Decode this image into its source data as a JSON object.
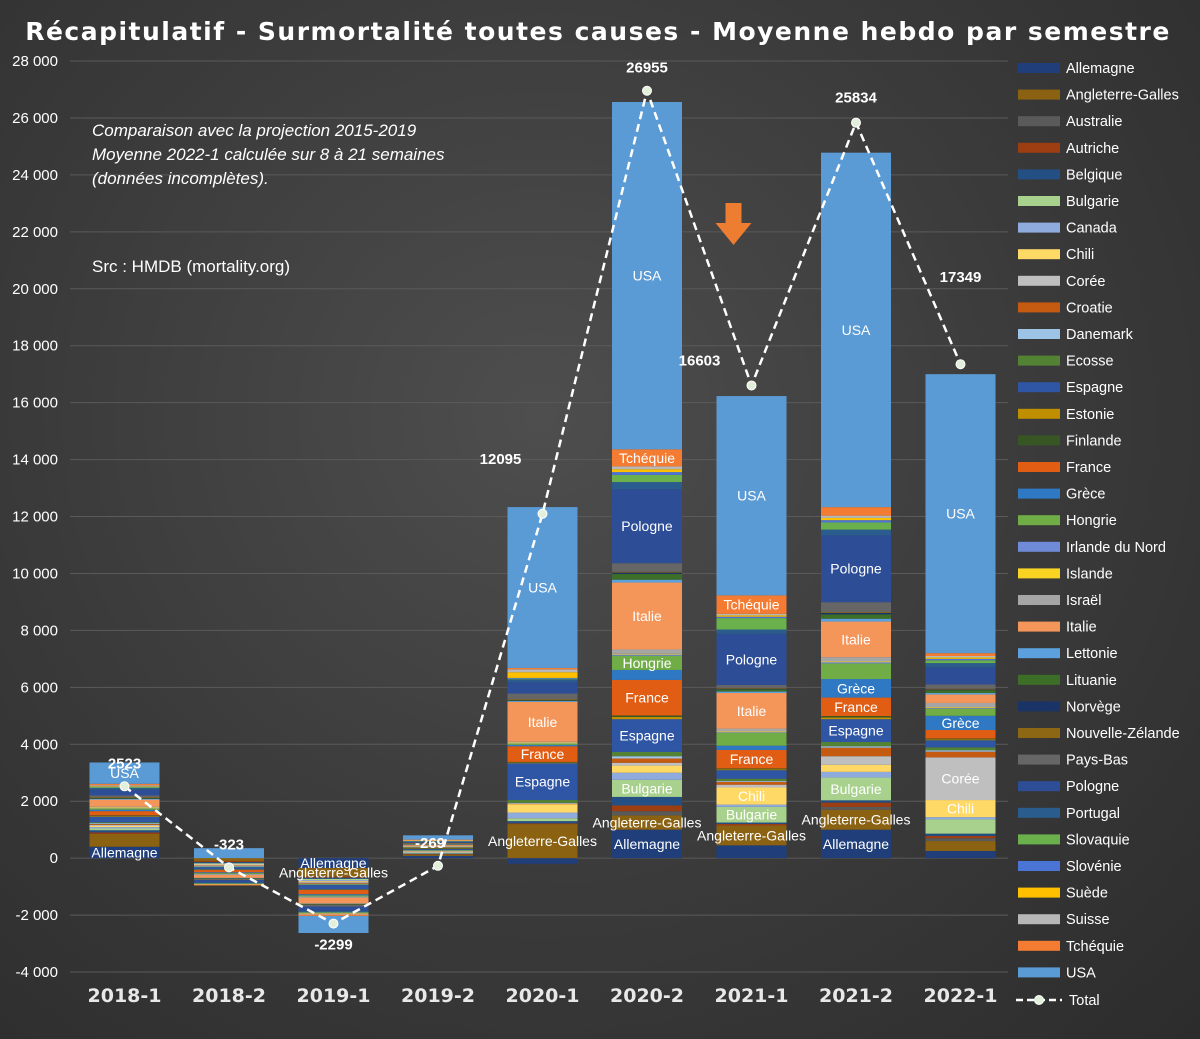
{
  "chart_data": {
    "type": "bar",
    "stacked": true,
    "title": "Récapitulatif - Surmortalité toutes causes - Moyenne hebdo par semestre",
    "annotations": [
      "Comparaison avec la projection 2015-2019",
      "Moyenne 2022-1 calculée sur 8 à 21 semaines",
      "(données incomplètes).",
      "Src : HMDB (mortality.org)"
    ],
    "categories": [
      "2018-1",
      "2018-2",
      "2019-1",
      "2019-2",
      "2020-1",
      "2020-2",
      "2021-1",
      "2021-2",
      "2022-1"
    ],
    "ylim": [
      -4000,
      28000
    ],
    "yticks": [
      -4000,
      -2000,
      0,
      2000,
      4000,
      6000,
      8000,
      10000,
      12000,
      14000,
      16000,
      18000,
      20000,
      22000,
      24000,
      26000,
      28000
    ],
    "ytick_labels": [
      "-4 000",
      "-2 000",
      "0",
      "2 000",
      "4 000",
      "6 000",
      "8 000",
      "10 000",
      "12 000",
      "14 000",
      "16 000",
      "18 000",
      "20 000",
      "22 000",
      "24 000",
      "26 000",
      "28 000"
    ],
    "legend_position": "right",
    "series": [
      {
        "name": "Allemagne",
        "color": "#1f3e7a",
        "values": [
          400,
          0,
          -350,
          80,
          -200,
          1000,
          450,
          1000,
          250
        ]
      },
      {
        "name": "Angleterre-Galles",
        "color": "#8a6212",
        "values": [
          450,
          -100,
          -300,
          50,
          1200,
          500,
          700,
          700,
          350
        ]
      },
      {
        "name": "Australie",
        "color": "#5a5a5a",
        "values": [
          0,
          0,
          0,
          0,
          0,
          150,
          0,
          100,
          100
        ]
      },
      {
        "name": "Autriche",
        "color": "#9c3d12",
        "values": [
          50,
          -40,
          -40,
          20,
          20,
          200,
          50,
          150,
          80
        ]
      },
      {
        "name": "Belgique",
        "color": "#234f84",
        "values": [
          80,
          -40,
          -40,
          20,
          80,
          300,
          50,
          80,
          80
        ]
      },
      {
        "name": "Bulgarie",
        "color": "#a9d18e",
        "values": [
          60,
          -20,
          -40,
          20,
          100,
          600,
          550,
          800,
          500
        ]
      },
      {
        "name": "Canada",
        "color": "#8faadc",
        "values": [
          50,
          -20,
          -40,
          20,
          200,
          250,
          80,
          200,
          80
        ]
      },
      {
        "name": "Chili",
        "color": "#ffd966",
        "values": [
          40,
          -20,
          -30,
          20,
          300,
          250,
          600,
          250,
          600
        ]
      },
      {
        "name": "Corée",
        "color": "#bfbfbf",
        "values": [
          40,
          -20,
          -30,
          20,
          0,
          100,
          100,
          300,
          1500
        ]
      },
      {
        "name": "Croatie",
        "color": "#c55a11",
        "values": [
          30,
          -20,
          -30,
          20,
          20,
          150,
          100,
          300,
          200
        ]
      },
      {
        "name": "Danemark",
        "color": "#9dc3e6",
        "values": [
          30,
          -20,
          -20,
          10,
          20,
          80,
          30,
          50,
          50
        ]
      },
      {
        "name": "Ecosse",
        "color": "#548235",
        "values": [
          30,
          -20,
          -30,
          10,
          100,
          150,
          80,
          150,
          100
        ]
      },
      {
        "name": "Espagne",
        "color": "#2e56a5",
        "values": [
          200,
          -80,
          -150,
          50,
          1300,
          1150,
          300,
          800,
          250
        ]
      },
      {
        "name": "Estonie",
        "color": "#bf8f00",
        "values": [
          20,
          -10,
          -10,
          10,
          20,
          80,
          30,
          60,
          30
        ]
      },
      {
        "name": "Finlande",
        "color": "#375623",
        "values": [
          20,
          -10,
          -10,
          10,
          20,
          50,
          30,
          50,
          30
        ]
      },
      {
        "name": "France",
        "color": "#e15d13",
        "values": [
          150,
          -80,
          -150,
          30,
          550,
          1250,
          650,
          650,
          300
        ]
      },
      {
        "name": "Grèce",
        "color": "#2f79c4",
        "values": [
          50,
          -30,
          -40,
          10,
          50,
          350,
          150,
          650,
          500
        ]
      },
      {
        "name": "Hongrie",
        "color": "#70ad47",
        "values": [
          50,
          -30,
          -40,
          10,
          50,
          500,
          450,
          550,
          250
        ]
      },
      {
        "name": "Irlande du Nord",
        "color": "#6f8ad6",
        "values": [
          20,
          -10,
          -10,
          10,
          20,
          50,
          30,
          50,
          30
        ]
      },
      {
        "name": "Islande",
        "color": "#f9d423",
        "values": [
          10,
          -5,
          -5,
          5,
          10,
          20,
          20,
          20,
          20
        ]
      },
      {
        "name": "Israël",
        "color": "#a5a5a5",
        "values": [
          30,
          -20,
          -30,
          10,
          30,
          150,
          100,
          150,
          150
        ]
      },
      {
        "name": "Italie",
        "color": "#f4955a",
        "values": [
          250,
          -100,
          -200,
          50,
          1400,
          2350,
          1250,
          1250,
          300
        ]
      },
      {
        "name": "Lettonie",
        "color": "#5ca1dd",
        "values": [
          20,
          -10,
          -10,
          10,
          30,
          100,
          50,
          100,
          50
        ]
      },
      {
        "name": "Lituanie",
        "color": "#3d6e27",
        "values": [
          30,
          -20,
          -20,
          10,
          30,
          200,
          80,
          150,
          100
        ]
      },
      {
        "name": "Norvège",
        "color": "#1a3468",
        "values": [
          20,
          -10,
          -10,
          10,
          20,
          50,
          30,
          50,
          30
        ]
      },
      {
        "name": "Nouvelle-Zélande",
        "color": "#8d6714",
        "values": [
          10,
          -5,
          -5,
          5,
          10,
          30,
          20,
          30,
          20
        ]
      },
      {
        "name": "Pays-Bas",
        "color": "#666666",
        "values": [
          60,
          -30,
          -60,
          20,
          200,
          300,
          100,
          350,
          150
        ]
      },
      {
        "name": "Pologne",
        "color": "#2d4e97",
        "values": [
          200,
          -80,
          -150,
          40,
          400,
          2600,
          1800,
          2350,
          600
        ]
      },
      {
        "name": "Portugal",
        "color": "#2a5c8e",
        "values": [
          60,
          -30,
          -40,
          20,
          100,
          250,
          150,
          200,
          150
        ]
      },
      {
        "name": "Slovaquie",
        "color": "#6ab04c",
        "values": [
          40,
          -20,
          -30,
          10,
          30,
          250,
          400,
          250,
          100
        ]
      },
      {
        "name": "Slovénie",
        "color": "#4a74d6",
        "values": [
          20,
          -10,
          -20,
          10,
          20,
          100,
          50,
          80,
          50
        ]
      },
      {
        "name": "Suède",
        "color": "#ffc000",
        "values": [
          20,
          -10,
          -20,
          10,
          200,
          100,
          50,
          80,
          50
        ]
      },
      {
        "name": "Suisse",
        "color": "#b7b7b7",
        "values": [
          20,
          -10,
          -20,
          10,
          100,
          100,
          50,
          80,
          50
        ]
      },
      {
        "name": "Tchéquie",
        "color": "#f37c32",
        "values": [
          50,
          -30,
          -50,
          10,
          50,
          600,
          650,
          300,
          100
        ]
      },
      {
        "name": "USA",
        "color": "#5b9bd5",
        "values": [
          750,
          350,
          -600,
          150,
          5650,
          12200,
          7000,
          12450,
          9800
        ]
      }
    ],
    "total_series": {
      "name": "Total",
      "values": [
        2523,
        -323,
        -2299,
        -269,
        12095,
        26955,
        16603,
        25834,
        17349
      ]
    },
    "segment_labels": [
      {
        "bar": 0,
        "series": "Allemagne"
      },
      {
        "bar": 0,
        "series": "USA"
      },
      {
        "bar": 2,
        "series": "Angleterre-Galles"
      },
      {
        "bar": 2,
        "series": "Allemagne"
      },
      {
        "bar": 4,
        "series": "Angleterre-Galles"
      },
      {
        "bar": 4,
        "series": "Espagne"
      },
      {
        "bar": 4,
        "series": "France"
      },
      {
        "bar": 4,
        "series": "Italie"
      },
      {
        "bar": 4,
        "series": "USA"
      },
      {
        "bar": 5,
        "series": "Allemagne"
      },
      {
        "bar": 5,
        "series": "Angleterre-Galles"
      },
      {
        "bar": 5,
        "series": "Bulgarie"
      },
      {
        "bar": 5,
        "series": "Espagne"
      },
      {
        "bar": 5,
        "series": "France"
      },
      {
        "bar": 5,
        "series": "Hongrie"
      },
      {
        "bar": 5,
        "series": "Italie"
      },
      {
        "bar": 5,
        "series": "Pologne"
      },
      {
        "bar": 5,
        "series": "Tchéquie"
      },
      {
        "bar": 5,
        "series": "USA"
      },
      {
        "bar": 6,
        "series": "Angleterre-Galles"
      },
      {
        "bar": 6,
        "series": "Bulgarie"
      },
      {
        "bar": 6,
        "series": "Chili"
      },
      {
        "bar": 6,
        "series": "France"
      },
      {
        "bar": 6,
        "series": "Italie"
      },
      {
        "bar": 6,
        "series": "Pologne"
      },
      {
        "bar": 6,
        "series": "Tchéquie"
      },
      {
        "bar": 6,
        "series": "USA"
      },
      {
        "bar": 7,
        "series": "Allemagne"
      },
      {
        "bar": 7,
        "series": "Angleterre-Galles"
      },
      {
        "bar": 7,
        "series": "Bulgarie"
      },
      {
        "bar": 7,
        "series": "Espagne"
      },
      {
        "bar": 7,
        "series": "France"
      },
      {
        "bar": 7,
        "series": "Grèce"
      },
      {
        "bar": 7,
        "series": "Italie"
      },
      {
        "bar": 7,
        "series": "Pologne"
      },
      {
        "bar": 7,
        "series": "USA"
      },
      {
        "bar": 8,
        "series": "Chili"
      },
      {
        "bar": 8,
        "series": "Corée"
      },
      {
        "bar": 8,
        "series": "Grèce"
      },
      {
        "bar": 8,
        "series": "USA"
      }
    ],
    "arrow_marker": {
      "category": "2021-1",
      "direction": "down",
      "color": "#ed7d31"
    }
  }
}
